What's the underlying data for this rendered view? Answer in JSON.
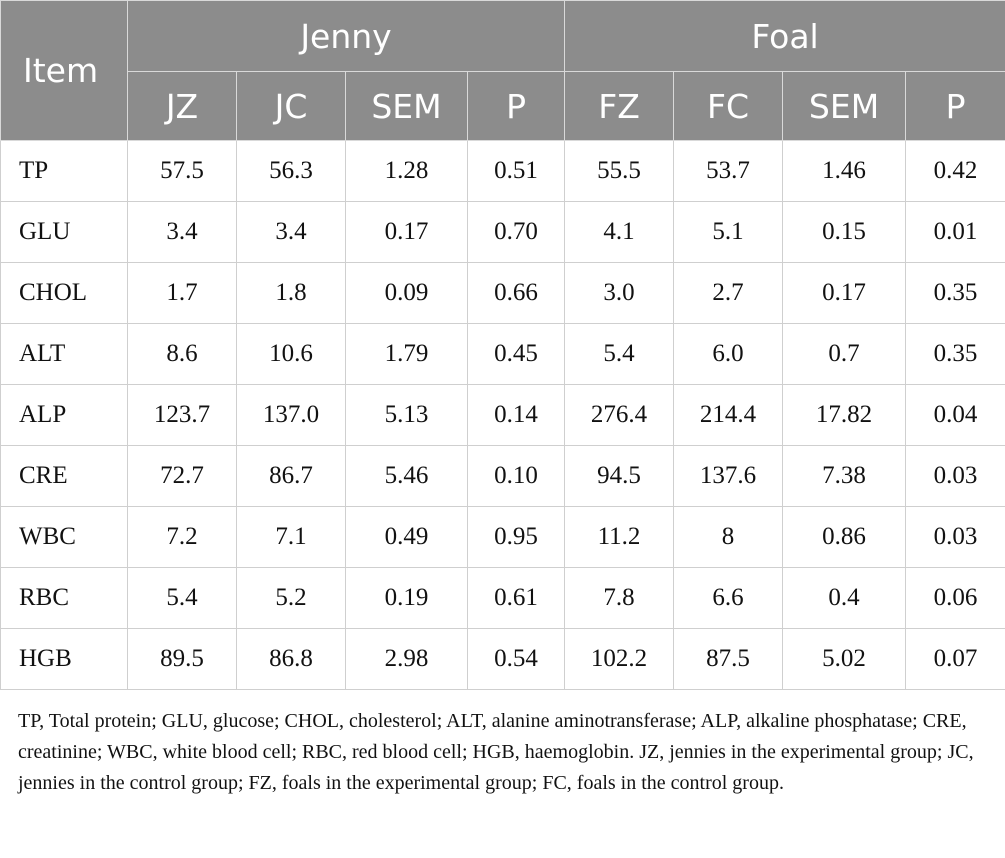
{
  "table": {
    "item_header": "Item",
    "groups": [
      "Jenny",
      "Foal"
    ],
    "subheaders": [
      "JZ",
      "JC",
      "SEM",
      "P",
      "FZ",
      "FC",
      "SEM",
      "P"
    ],
    "rows": [
      [
        "TP",
        "57.5",
        "56.3",
        "1.28",
        "0.51",
        "55.5",
        "53.7",
        "1.46",
        "0.42"
      ],
      [
        "GLU",
        "3.4",
        "3.4",
        "0.17",
        "0.70",
        "4.1",
        "5.1",
        "0.15",
        "0.01"
      ],
      [
        "CHOL",
        "1.7",
        "1.8",
        "0.09",
        "0.66",
        "3.0",
        "2.7",
        "0.17",
        "0.35"
      ],
      [
        "ALT",
        "8.6",
        "10.6",
        "1.79",
        "0.45",
        "5.4",
        "6.0",
        "0.7",
        "0.35"
      ],
      [
        "ALP",
        "123.7",
        "137.0",
        "5.13",
        "0.14",
        "276.4",
        "214.4",
        "17.82",
        "0.04"
      ],
      [
        "CRE",
        "72.7",
        "86.7",
        "5.46",
        "0.10",
        "94.5",
        "137.6",
        "7.38",
        "0.03"
      ],
      [
        "WBC",
        "7.2",
        "7.1",
        "0.49",
        "0.95",
        "11.2",
        "8",
        "0.86",
        "0.03"
      ],
      [
        "RBC",
        "5.4",
        "5.2",
        "0.19",
        "0.61",
        "7.8",
        "6.6",
        "0.4",
        "0.06"
      ],
      [
        "HGB",
        "89.5",
        "86.8",
        "2.98",
        "0.54",
        "102.2",
        "87.5",
        "5.02",
        "0.07"
      ]
    ]
  },
  "caption": "TP, Total protein; GLU, glucose; CHOL, cholesterol; ALT, alanine aminotransferase; ALP, alkaline phosphatase; CRE, creatinine; WBC, white blood cell; RBC, red blood cell; HGB, haemoglobin. JZ, jennies in the experimental group; JC, jennies in the control group; FZ, foals in the experimental group; FC, foals in the control group."
}
